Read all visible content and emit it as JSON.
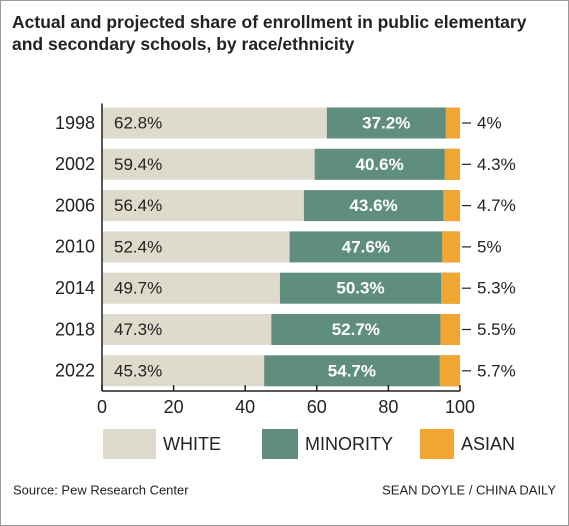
{
  "chart_data": {
    "type": "stacked_barh",
    "title": "Actual and projected share of enrollment in public elementary and secondary schools, by race/ethnicity",
    "categories": [
      "1998",
      "2002",
      "2006",
      "2010",
      "2014",
      "2018",
      "2022"
    ],
    "series": [
      {
        "name": "WHITE",
        "color": "#dedbcc",
        "values": [
          62.8,
          59.4,
          56.4,
          52.4,
          49.7,
          47.3,
          45.3
        ],
        "value_labels": [
          "62.8%",
          "59.4%",
          "56.4%",
          "52.4%",
          "49.7%",
          "47.3%",
          "45.3%"
        ]
      },
      {
        "name": "MINORITY",
        "color": "#5f8d7e",
        "values": [
          37.2,
          40.6,
          43.6,
          47.6,
          50.3,
          52.7,
          54.7
        ],
        "value_labels": [
          "37.2%",
          "40.6%",
          "43.6%",
          "47.6%",
          "50.3%",
          "52.7%",
          "54.7%"
        ]
      },
      {
        "name": "ASIAN",
        "color": "#f0a630",
        "values": [
          4,
          4.3,
          4.7,
          5,
          5.3,
          5.5,
          5.7
        ],
        "value_labels": [
          "4%",
          "4.3%",
          "4.7%",
          "5%",
          "5.3%",
          "5.5%",
          "5.7%"
        ]
      }
    ],
    "xlim": [
      0,
      100
    ],
    "xticks": [
      0,
      20,
      40,
      60,
      80,
      100
    ],
    "source": "Source: Pew Research Center",
    "credit": "SEAN DOYLE / CHINA DAILY"
  }
}
